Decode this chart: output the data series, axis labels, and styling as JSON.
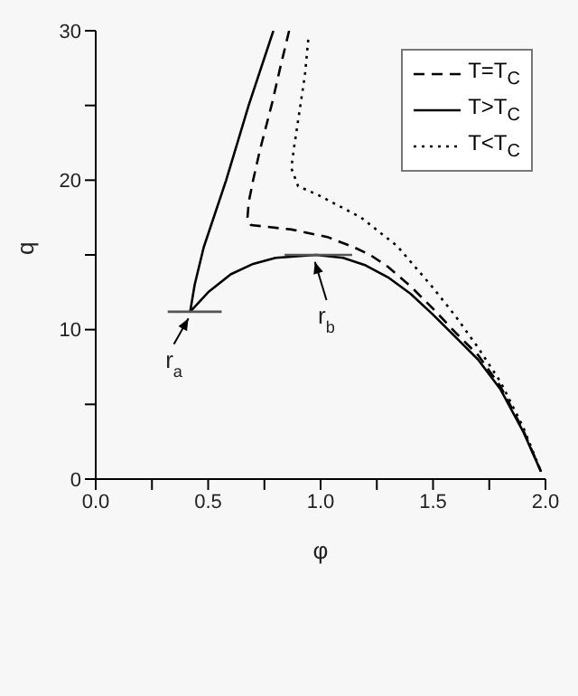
{
  "chart_data": {
    "type": "line",
    "xlabel": "φ",
    "ylabel": "q",
    "xlim": [
      0,
      2
    ],
    "ylim": [
      0,
      30
    ],
    "xticks": [
      {
        "value": 0,
        "label": "0.0"
      },
      {
        "value": 0.25,
        "label": null
      },
      0.5,
      {
        "value": 0.75,
        "label": null
      },
      {
        "value": 1,
        "label": "1.0"
      },
      {
        "value": 1.25,
        "label": null
      },
      1.5,
      {
        "value": 1.75,
        "label": null
      },
      {
        "value": 2,
        "label": "2.0"
      }
    ],
    "yticks": [
      0,
      {
        "value": 5,
        "label": null
      },
      10,
      {
        "value": 15,
        "label": null
      },
      20,
      {
        "value": 25,
        "label": null
      },
      30
    ],
    "grid": false,
    "legend": "top right",
    "marker": "none",
    "series": [
      {
        "name": "T=T$_{C}$",
        "color": "#000000",
        "line_style": "dashed",
        "x": [
          0.86,
          0.82,
          0.785,
          0.73,
          0.7,
          0.68,
          0.675,
          0.69,
          0.75,
          0.87,
          1.03,
          1.15,
          1.22,
          1.3,
          1.4,
          1.5,
          1.6,
          1.7,
          1.8,
          1.9,
          1.98
        ],
        "values": [
          30,
          27.5,
          25.2,
          22,
          20,
          18.5,
          17.5,
          17,
          16.9,
          16.7,
          16.2,
          15.5,
          15,
          14.2,
          12.9,
          11.4,
          9.8,
          8.3,
          6.2,
          3.3,
          0.5
        ]
      },
      {
        "name": "T>T$_{C}$",
        "color": "#000000",
        "line_style": "solid",
        "x": [
          0.79,
          0.68,
          0.58,
          0.52,
          0.48,
          0.44,
          0.42,
          0.5,
          0.6,
          0.7,
          0.8,
          0.98,
          1.1,
          1.2,
          1.3,
          1.4,
          1.5,
          1.6,
          1.7,
          1.8,
          1.9,
          1.98
        ],
        "values": [
          30,
          25,
          20,
          17.3,
          15.5,
          13,
          11.2,
          12.5,
          13.7,
          14.4,
          14.8,
          15,
          14.8,
          14.3,
          13.5,
          12.4,
          11,
          9.5,
          8,
          6,
          3.2,
          0.5
        ]
      },
      {
        "name": "T<T$_{C}$",
        "color": "#000000",
        "line_style": "dotted",
        "x": [
          0.945,
          0.93,
          0.9,
          0.88,
          0.87,
          0.9,
          0.99,
          1.18,
          1.34,
          1.5,
          1.6,
          1.7,
          1.8,
          1.9,
          1.98
        ],
        "values": [
          29.4,
          27,
          24,
          22,
          20.8,
          19.6,
          19,
          17.5,
          15.6,
          12.8,
          10.9,
          8.8,
          6.5,
          3.5,
          0.5
        ]
      },
      {
        "color": "#555555",
        "line_style": "solid",
        "x": [
          0.32,
          0.56
        ],
        "values": [
          11.2,
          11.2
        ]
      },
      {
        "color": "#555555",
        "line_style": "solid",
        "x": [
          0.84,
          1.14
        ],
        "values": [
          15,
          15
        ]
      }
    ],
    "annotations": [
      {
        "text": "r$_{a}$",
        "x": 0.42,
        "y": 11.2
      },
      {
        "text": "r$_{b}$",
        "x": 0.97,
        "y": 15
      }
    ]
  }
}
